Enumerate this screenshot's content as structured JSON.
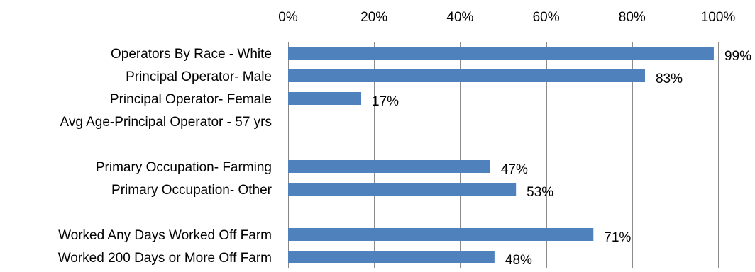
{
  "chart_data": {
    "type": "bar",
    "orientation": "horizontal",
    "title": "",
    "xlabel": "",
    "ylabel": "",
    "xlim": [
      0,
      100
    ],
    "x_ticks": [
      0,
      20,
      40,
      60,
      80,
      100
    ],
    "x_tick_labels": [
      "0%",
      "20%",
      "40%",
      "60%",
      "80%",
      "100%"
    ],
    "x_axis_position": "top",
    "grid": "vertical",
    "legend": "none",
    "bar_color": "#4F81BD",
    "categories": [
      "Operators By Race - White",
      "Principal Operator- Male",
      "Principal Operator- Female",
      "Avg Age-Principal Operator - 57 yrs",
      "",
      "Primary Occupation- Farming",
      "Primary Occupation- Other",
      "",
      "Worked Any Days Worked Off Farm",
      "Worked 200 Days or More Off Farm"
    ],
    "values": [
      99,
      83,
      17,
      null,
      null,
      47,
      53,
      null,
      71,
      48
    ],
    "data_labels": [
      "99%",
      "83%",
      "17%",
      "",
      "",
      "47%",
      "53%",
      "",
      "71%",
      "48%"
    ]
  }
}
